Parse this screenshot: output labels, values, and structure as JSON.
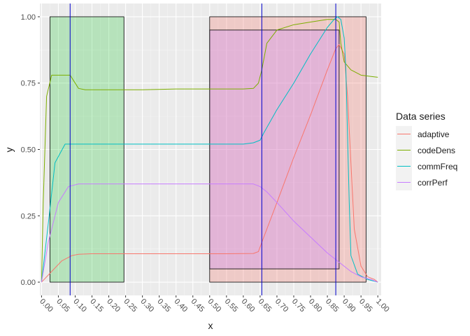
{
  "chart_data": {
    "type": "line",
    "xlabel": "x",
    "ylabel": "y",
    "xlim": [
      -0.005,
      1.01
    ],
    "ylim": [
      -0.05,
      1.05
    ],
    "grid": true,
    "x_ticks": [
      "0.00",
      "0.05",
      "0.10",
      "0.15",
      "0.20",
      "0.25",
      "0.30",
      "0.35",
      "0.40",
      "0.45",
      "0.50",
      "0.55",
      "0.60",
      "0.65",
      "0.70",
      "0.75",
      "0.80",
      "0.85",
      "0.90",
      "0.95",
      "1.00"
    ],
    "y_ticks": [
      "0.00",
      "0.25",
      "0.50",
      "0.75",
      "1.00"
    ],
    "legend": {
      "title": "Data series",
      "position": "right",
      "entries": [
        "adaptive",
        "codeDens",
        "commFreq",
        "corrPerf"
      ]
    },
    "series": [
      {
        "name": "adaptive",
        "color": "#F8766D",
        "x": [
          0.0,
          0.03,
          0.06,
          0.09,
          0.11,
          0.15,
          0.25,
          0.35,
          0.45,
          0.55,
          0.63,
          0.645,
          0.655,
          0.7,
          0.75,
          0.8,
          0.85,
          0.875,
          0.885,
          0.9,
          0.91,
          0.92,
          0.93,
          0.95,
          0.97,
          0.99,
          1.0
        ],
        "values": [
          0.0,
          0.04,
          0.08,
          0.1,
          0.105,
          0.107,
          0.107,
          0.107,
          0.107,
          0.107,
          0.108,
          0.115,
          0.15,
          0.3,
          0.47,
          0.63,
          0.8,
          0.88,
          0.895,
          0.86,
          0.7,
          0.45,
          0.2,
          0.06,
          0.02,
          0.01,
          0.0
        ]
      },
      {
        "name": "codeDens",
        "color": "#7CAE00",
        "x": [
          0.0,
          0.005,
          0.015,
          0.03,
          0.06,
          0.085,
          0.095,
          0.11,
          0.13,
          0.2,
          0.3,
          0.4,
          0.5,
          0.6,
          0.63,
          0.645,
          0.655,
          0.67,
          0.7,
          0.75,
          0.8,
          0.85,
          0.875,
          0.885,
          0.89,
          0.9,
          0.92,
          0.95,
          0.98,
          1.0
        ],
        "values": [
          0.0,
          0.3,
          0.7,
          0.78,
          0.78,
          0.78,
          0.76,
          0.73,
          0.725,
          0.725,
          0.725,
          0.728,
          0.728,
          0.728,
          0.73,
          0.75,
          0.8,
          0.9,
          0.95,
          0.97,
          0.98,
          0.99,
          0.99,
          0.98,
          0.9,
          0.83,
          0.8,
          0.78,
          0.775,
          0.772
        ]
      },
      {
        "name": "commFreq",
        "color": "#00BFC4",
        "x": [
          0.0,
          0.02,
          0.04,
          0.07,
          0.09,
          0.15,
          0.3,
          0.45,
          0.6,
          0.63,
          0.65,
          0.66,
          0.7,
          0.75,
          0.8,
          0.85,
          0.87,
          0.88,
          0.89,
          0.9,
          0.905,
          0.91,
          0.915,
          0.92,
          0.94,
          0.97,
          1.0
        ],
        "values": [
          0.0,
          0.22,
          0.45,
          0.52,
          0.52,
          0.52,
          0.52,
          0.52,
          0.52,
          0.525,
          0.535,
          0.56,
          0.65,
          0.75,
          0.86,
          0.96,
          0.99,
          1.0,
          0.99,
          0.92,
          0.8,
          0.55,
          0.3,
          0.1,
          0.03,
          0.01,
          0.0
        ]
      },
      {
        "name": "corrPerf",
        "color": "#C77CFF",
        "x": [
          0.0,
          0.02,
          0.05,
          0.08,
          0.11,
          0.15,
          0.3,
          0.45,
          0.55,
          0.63,
          0.65,
          0.67,
          0.7,
          0.75,
          0.8,
          0.85,
          0.88,
          0.9,
          0.92,
          0.95,
          0.98,
          1.0
        ],
        "values": [
          0.0,
          0.15,
          0.3,
          0.36,
          0.37,
          0.37,
          0.37,
          0.37,
          0.37,
          0.37,
          0.36,
          0.34,
          0.3,
          0.23,
          0.17,
          0.11,
          0.08,
          0.06,
          0.04,
          0.02,
          0.01,
          0.0
        ]
      }
    ],
    "shaded_regions": [
      {
        "x": [
          0.025,
          0.245
        ],
        "y": [
          0.0,
          1.0
        ],
        "fill": "#2ECC40",
        "opacity": 0.28
      },
      {
        "x": [
          0.5,
          0.965
        ],
        "y": [
          0.0,
          1.0
        ],
        "fill": "#F8766D",
        "opacity": 0.28
      },
      {
        "x": [
          0.5,
          0.885
        ],
        "y": [
          0.05,
          0.95
        ],
        "fill": "#C77CFF",
        "opacity": 0.28
      }
    ],
    "vertical_lines": {
      "color": "#0000CD",
      "x": [
        0.085,
        0.655,
        0.875
      ]
    }
  }
}
